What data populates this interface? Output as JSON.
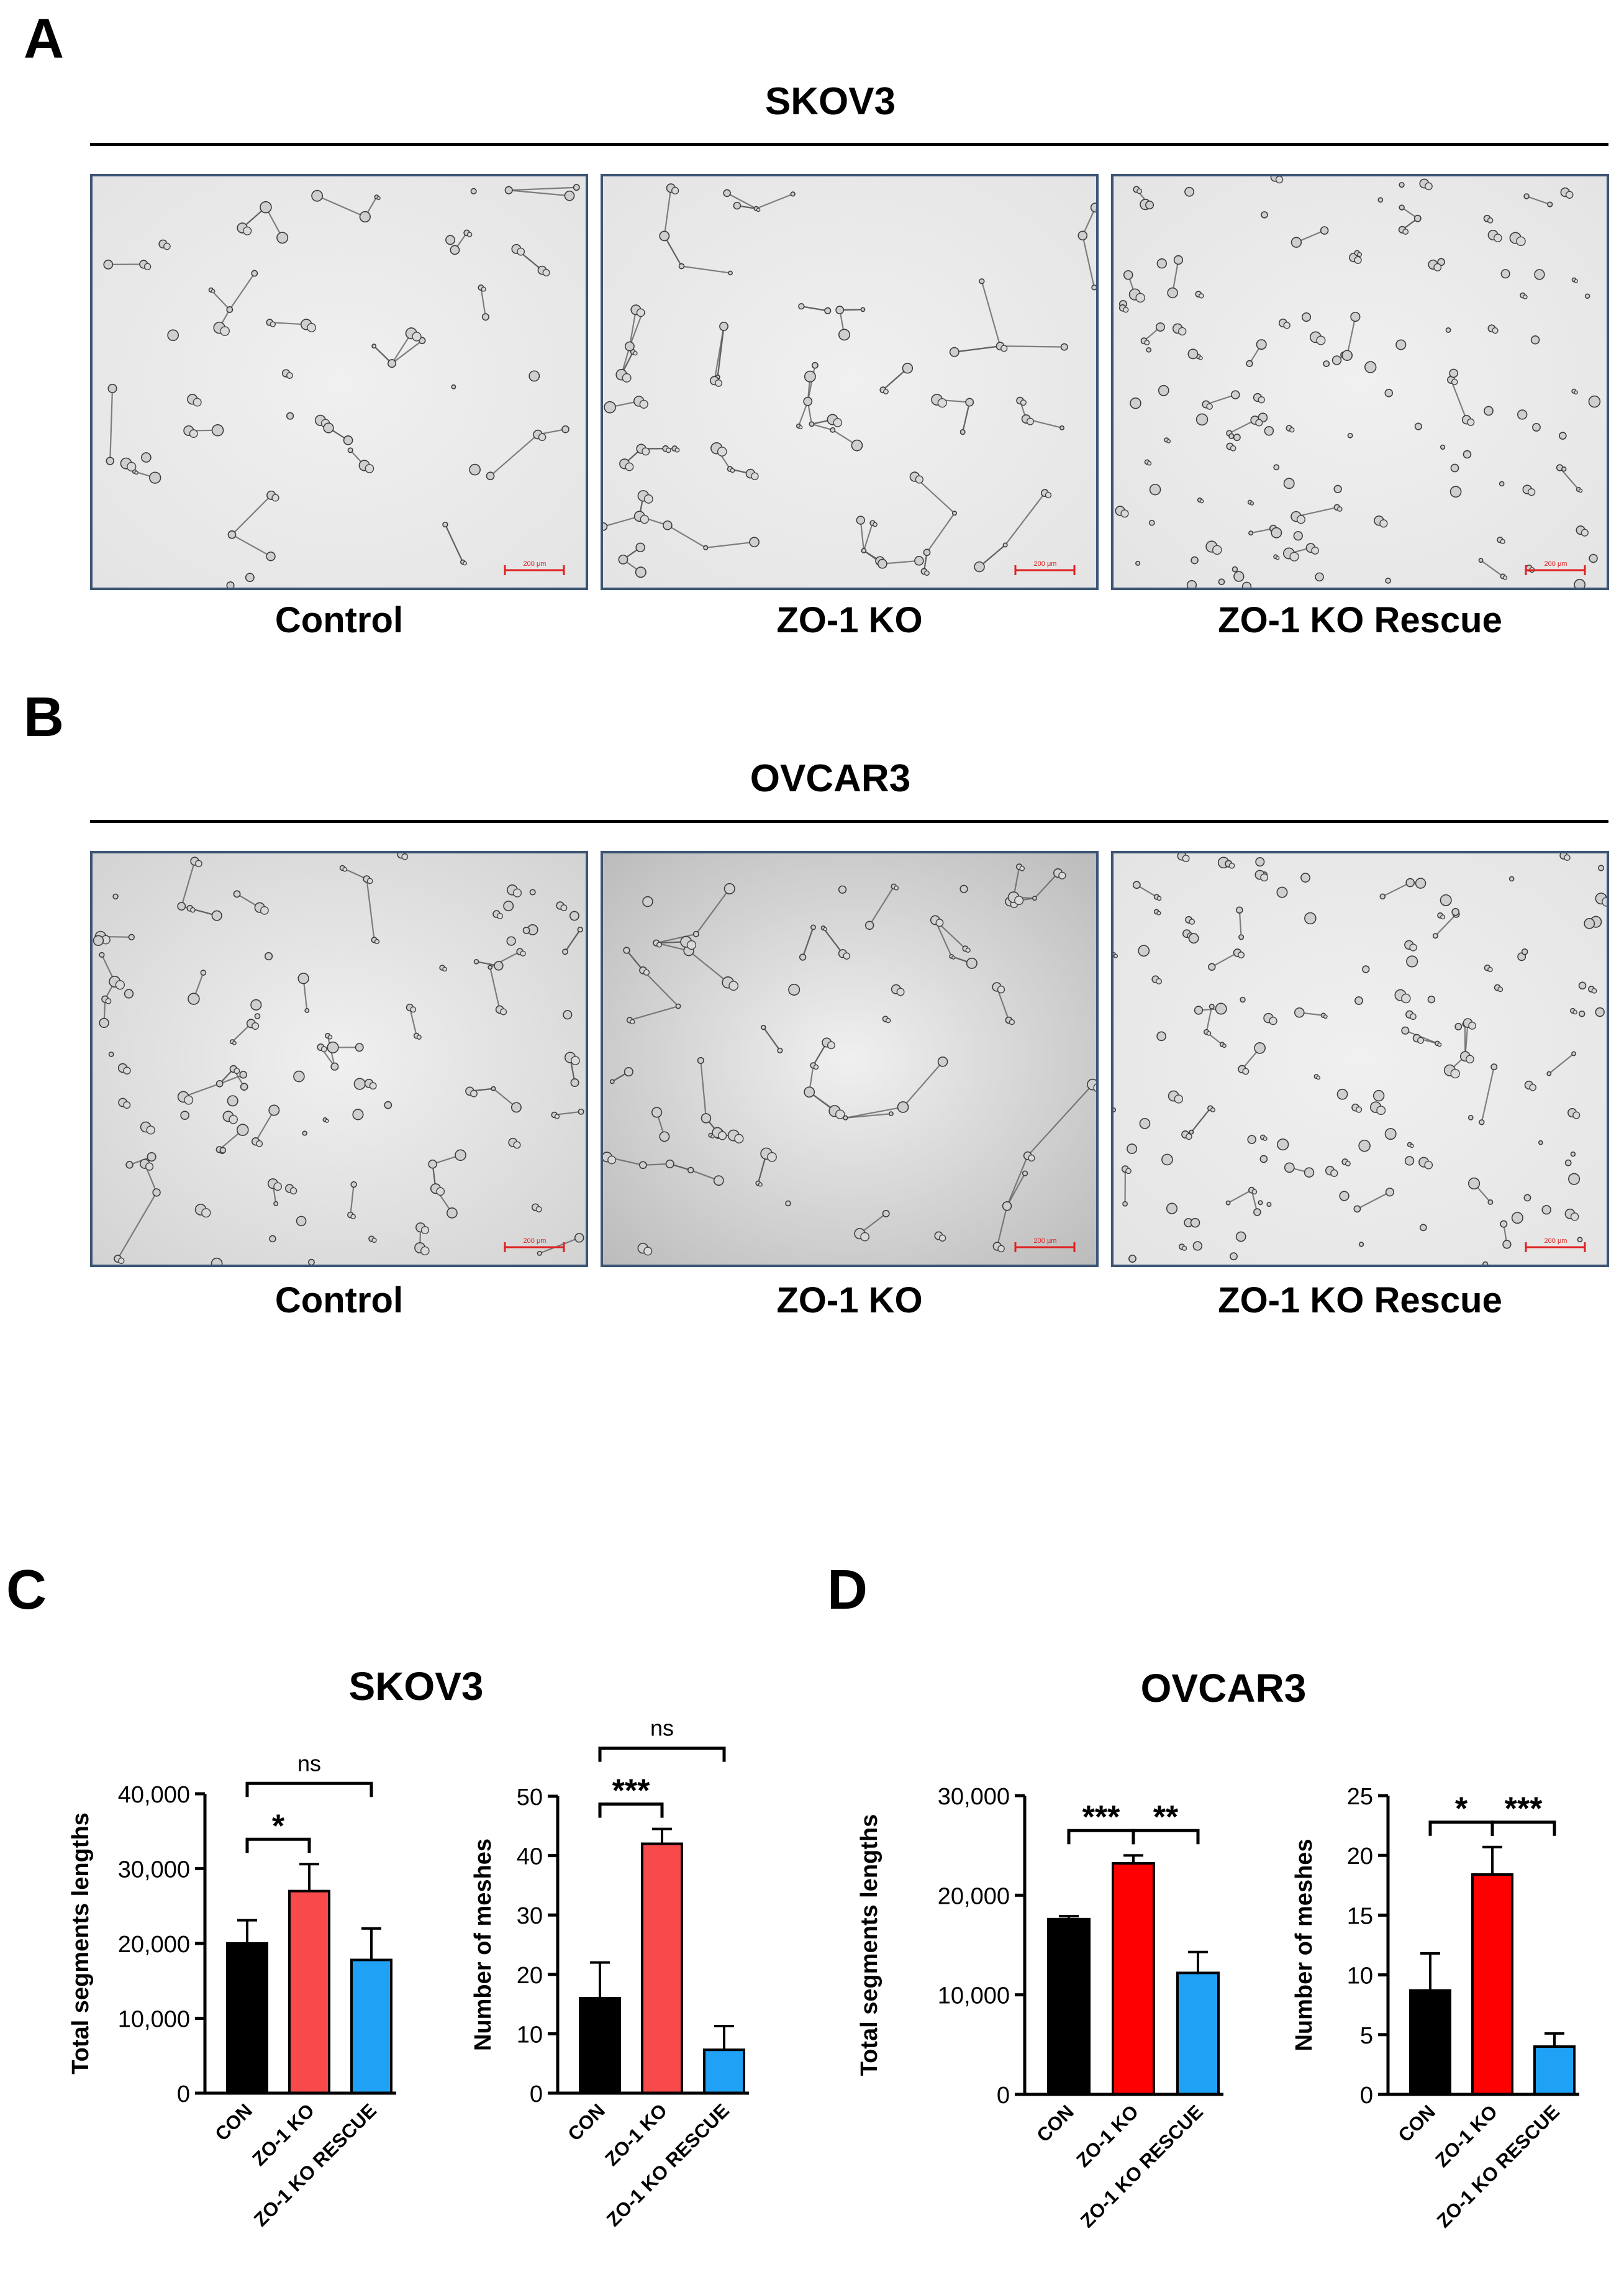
{
  "panels": {
    "A": {
      "letter": "A",
      "cell_line": "SKOV3",
      "conditions": [
        "Control",
        "ZO-1 KO",
        "ZO-1 KO Rescue"
      ],
      "scale_bar": [
        "200 μm",
        "200 μm",
        "200 μm"
      ]
    },
    "B": {
      "letter": "B",
      "cell_line": "OVCAR3",
      "conditions": [
        "Control",
        "ZO-1 KO",
        "ZO-1 KO Rescue"
      ],
      "scale_bar": [
        "200 μm",
        "200 μm",
        "200 μm"
      ]
    },
    "C": {
      "letter": "C",
      "cell_line": "SKOV3"
    },
    "D": {
      "letter": "D",
      "cell_line": "OVCAR3"
    }
  },
  "colors": {
    "con": "#000000",
    "ko": "#ff0000",
    "rescue": "#1fa2f5",
    "ko_light": "#f84a4a",
    "micro_bg_light": "#e4e4e4",
    "micro_bg_dark": "#bcbcbc",
    "frame": "#3d5575",
    "scale_bar": "#e02020"
  },
  "chart_data": [
    {
      "id": "C1",
      "type": "bar",
      "ylabel": "Total segments lengths",
      "categories": [
        "CON",
        "ZO-1 KO",
        "ZO-1 KO RESCUE"
      ],
      "values": [
        20000,
        27000,
        17800
      ],
      "errors": [
        3100,
        3600,
        4200
      ],
      "ylim": [
        0,
        40000
      ],
      "yticks": [
        "0",
        "10,000",
        "20,000",
        "30,000",
        "40,000"
      ],
      "significance": [
        {
          "from": 0,
          "to": 1,
          "label": "*"
        },
        {
          "from": 0,
          "to": 2,
          "label": "ns"
        }
      ]
    },
    {
      "id": "C2",
      "type": "bar",
      "ylabel": "Number of meshes",
      "categories": [
        "CON",
        "ZO-1 KO",
        "ZO-1 KO RESCUE"
      ],
      "values": [
        16,
        42,
        7.3
      ],
      "errors": [
        6,
        2.5,
        4
      ],
      "ylim": [
        0,
        50
      ],
      "yticks": [
        "0",
        "10",
        "20",
        "30",
        "40",
        "50"
      ],
      "significance": [
        {
          "from": 0,
          "to": 1,
          "label": "***"
        },
        {
          "from": 0,
          "to": 2,
          "label": "ns"
        }
      ]
    },
    {
      "id": "D1",
      "type": "bar",
      "ylabel": "Total segments lengths",
      "categories": [
        "CON",
        "ZO-1 KO",
        "ZO-1 KO RESCUE"
      ],
      "values": [
        17600,
        23200,
        12200
      ],
      "errors": [
        300,
        800,
        2100
      ],
      "ylim": [
        0,
        30000
      ],
      "yticks": [
        "0",
        "10,000",
        "20,000",
        "30,000"
      ],
      "significance": [
        {
          "from": 0,
          "to": 1,
          "label": "***"
        },
        {
          "from": 1,
          "to": 2,
          "label": "**"
        }
      ]
    },
    {
      "id": "D2",
      "type": "bar",
      "ylabel": "Number of meshes",
      "categories": [
        "CON",
        "ZO-1 KO",
        "ZO-1 KO RESCUE"
      ],
      "values": [
        8.7,
        18.4,
        4
      ],
      "errors": [
        3.1,
        2.3,
        1.1
      ],
      "ylim": [
        0,
        25
      ],
      "yticks": [
        "0",
        "5",
        "10",
        "15",
        "20",
        "25"
      ],
      "significance": [
        {
          "from": 0,
          "to": 1,
          "label": "*"
        },
        {
          "from": 1,
          "to": 2,
          "label": "***"
        }
      ]
    }
  ]
}
